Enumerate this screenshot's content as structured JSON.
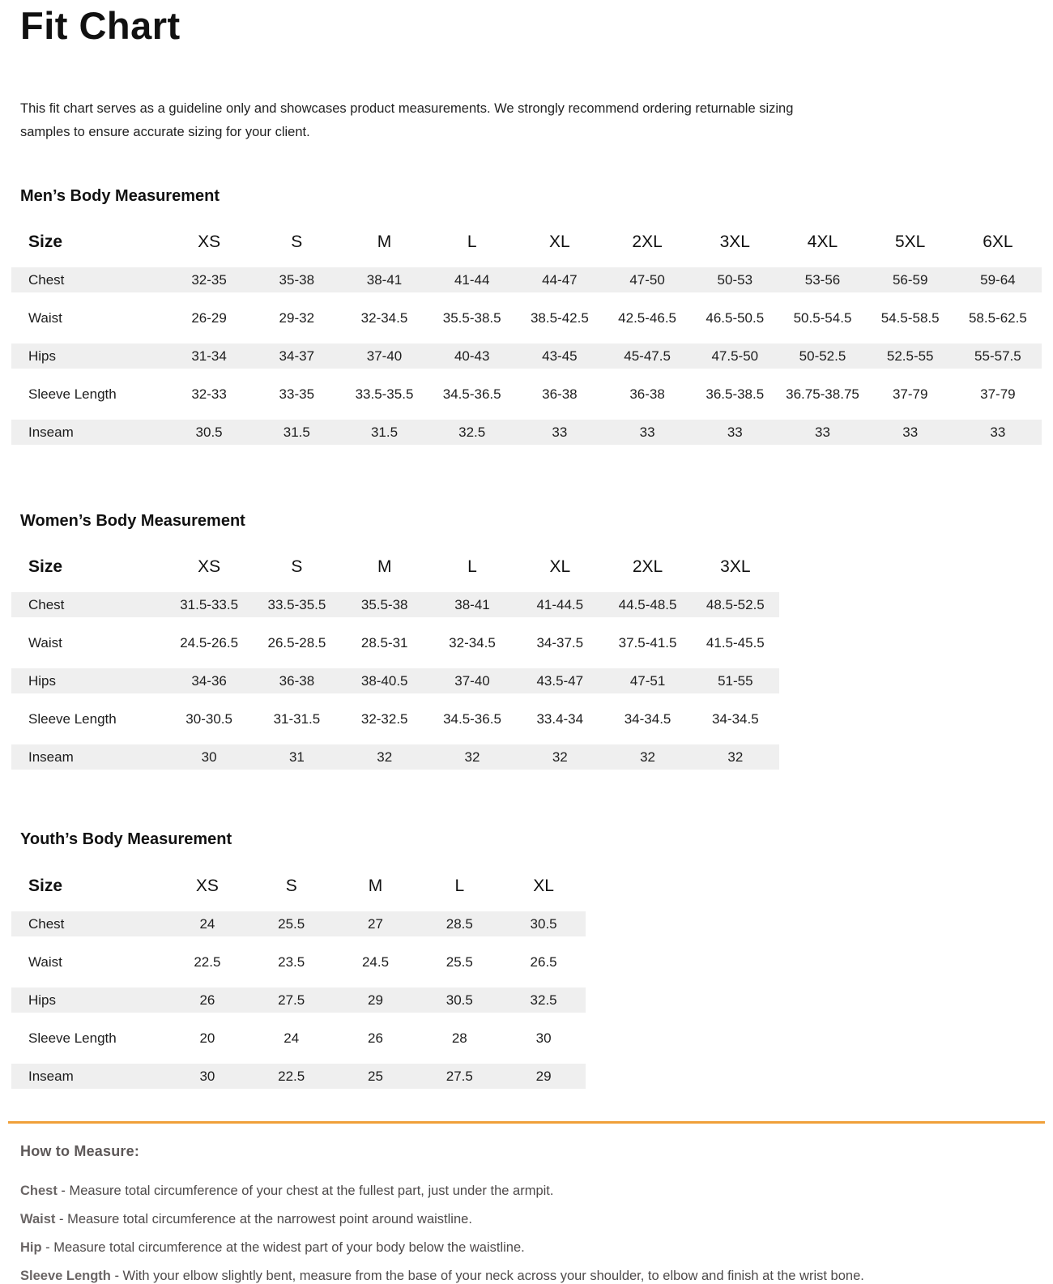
{
  "page": {
    "title": "Fit Chart",
    "intro": "This fit chart serves as a guideline only and showcases product measurements. We strongly recommend ordering returnable sizing samples to ensure accurate sizing for your client."
  },
  "tables": [
    {
      "id": "mens",
      "title": "Men’s Body Measurement",
      "size_label": "Size",
      "sizes": [
        "XS",
        "S",
        "M",
        "L",
        "XL",
        "2XL",
        "3XL",
        "4XL",
        "5XL",
        "6XL"
      ],
      "rows": [
        {
          "label": "Chest",
          "values": [
            "32-35",
            "35-38",
            "38-41",
            "41-44",
            "44-47",
            "47-50",
            "50-53",
            "53-56",
            "56-59",
            "59-64"
          ]
        },
        {
          "label": "Waist",
          "values": [
            "26-29",
            "29-32",
            "32-34.5",
            "35.5-38.5",
            "38.5-42.5",
            "42.5-46.5",
            "46.5-50.5",
            "50.5-54.5",
            "54.5-58.5",
            "58.5-62.5"
          ]
        },
        {
          "label": "Hips",
          "values": [
            "31-34",
            "34-37",
            "37-40",
            "40-43",
            "43-45",
            "45-47.5",
            "47.5-50",
            "50-52.5",
            "52.5-55",
            "55-57.5"
          ]
        },
        {
          "label": "Sleeve Length",
          "values": [
            "32-33",
            "33-35",
            "33.5-35.5",
            "34.5-36.5",
            "36-38",
            "36-38",
            "36.5-38.5",
            "36.75-38.75",
            "37-79",
            "37-79"
          ]
        },
        {
          "label": "Inseam",
          "values": [
            "30.5",
            "31.5",
            "31.5",
            "32.5",
            "33",
            "33",
            "33",
            "33",
            "33",
            "33"
          ]
        }
      ]
    },
    {
      "id": "womens",
      "title": "Women’s Body Measurement",
      "size_label": "Size",
      "sizes": [
        "XS",
        "S",
        "M",
        "L",
        "XL",
        "2XL",
        "3XL"
      ],
      "rows": [
        {
          "label": "Chest",
          "values": [
            "31.5-33.5",
            "33.5-35.5",
            "35.5-38",
            "38-41",
            "41-44.5",
            "44.5-48.5",
            "48.5-52.5"
          ]
        },
        {
          "label": "Waist",
          "values": [
            "24.5-26.5",
            "26.5-28.5",
            "28.5-31",
            "32-34.5",
            "34-37.5",
            "37.5-41.5",
            "41.5-45.5"
          ]
        },
        {
          "label": "Hips",
          "values": [
            "34-36",
            "36-38",
            "38-40.5",
            "37-40",
            "43.5-47",
            "47-51",
            "51-55"
          ]
        },
        {
          "label": "Sleeve Length",
          "values": [
            "30-30.5",
            "31-31.5",
            "32-32.5",
            "34.5-36.5",
            "33.4-34",
            "34-34.5",
            "34-34.5"
          ]
        },
        {
          "label": "Inseam",
          "values": [
            "30",
            "31",
            "32",
            "32",
            "32",
            "32",
            "32"
          ]
        }
      ]
    },
    {
      "id": "youths",
      "title": "Youth’s Body Measurement",
      "size_label": "Size",
      "sizes": [
        "XS",
        "S",
        "M",
        "L",
        "XL"
      ],
      "rows": [
        {
          "label": "Chest",
          "values": [
            "24",
            "25.5",
            "27",
            "28.5",
            "30.5"
          ]
        },
        {
          "label": "Waist",
          "values": [
            "22.5",
            "23.5",
            "24.5",
            "25.5",
            "26.5"
          ]
        },
        {
          "label": "Hips",
          "values": [
            "26",
            "27.5",
            "29",
            "30.5",
            "32.5"
          ]
        },
        {
          "label": "Sleeve Length",
          "values": [
            "20",
            "24",
            "26",
            "28",
            "30"
          ]
        },
        {
          "label": "Inseam",
          "values": [
            "30",
            "22.5",
            "25",
            "27.5",
            "29"
          ]
        }
      ]
    }
  ],
  "how_to_measure": {
    "heading": "How to Measure:",
    "separator": " - ",
    "items": [
      {
        "label": "Chest",
        "text": "Measure total circumference of your chest at the fullest part, just under the armpit."
      },
      {
        "label": "Waist",
        "text": "Measure total circumference at the narrowest point around waistline."
      },
      {
        "label": "Hip",
        "text": "Measure total circumference at the widest part of your body below the waistline."
      },
      {
        "label": "Sleeve Length",
        "text": "With your elbow slightly bent, measure from the base of your neck across your shoulder, to elbow and finish at the wrist bone."
      }
    ]
  },
  "colors": {
    "stripe": "#efefef",
    "accent_rule": "#f0a03a",
    "text": "#1d1d1d",
    "muted_text": "#5d5858"
  }
}
